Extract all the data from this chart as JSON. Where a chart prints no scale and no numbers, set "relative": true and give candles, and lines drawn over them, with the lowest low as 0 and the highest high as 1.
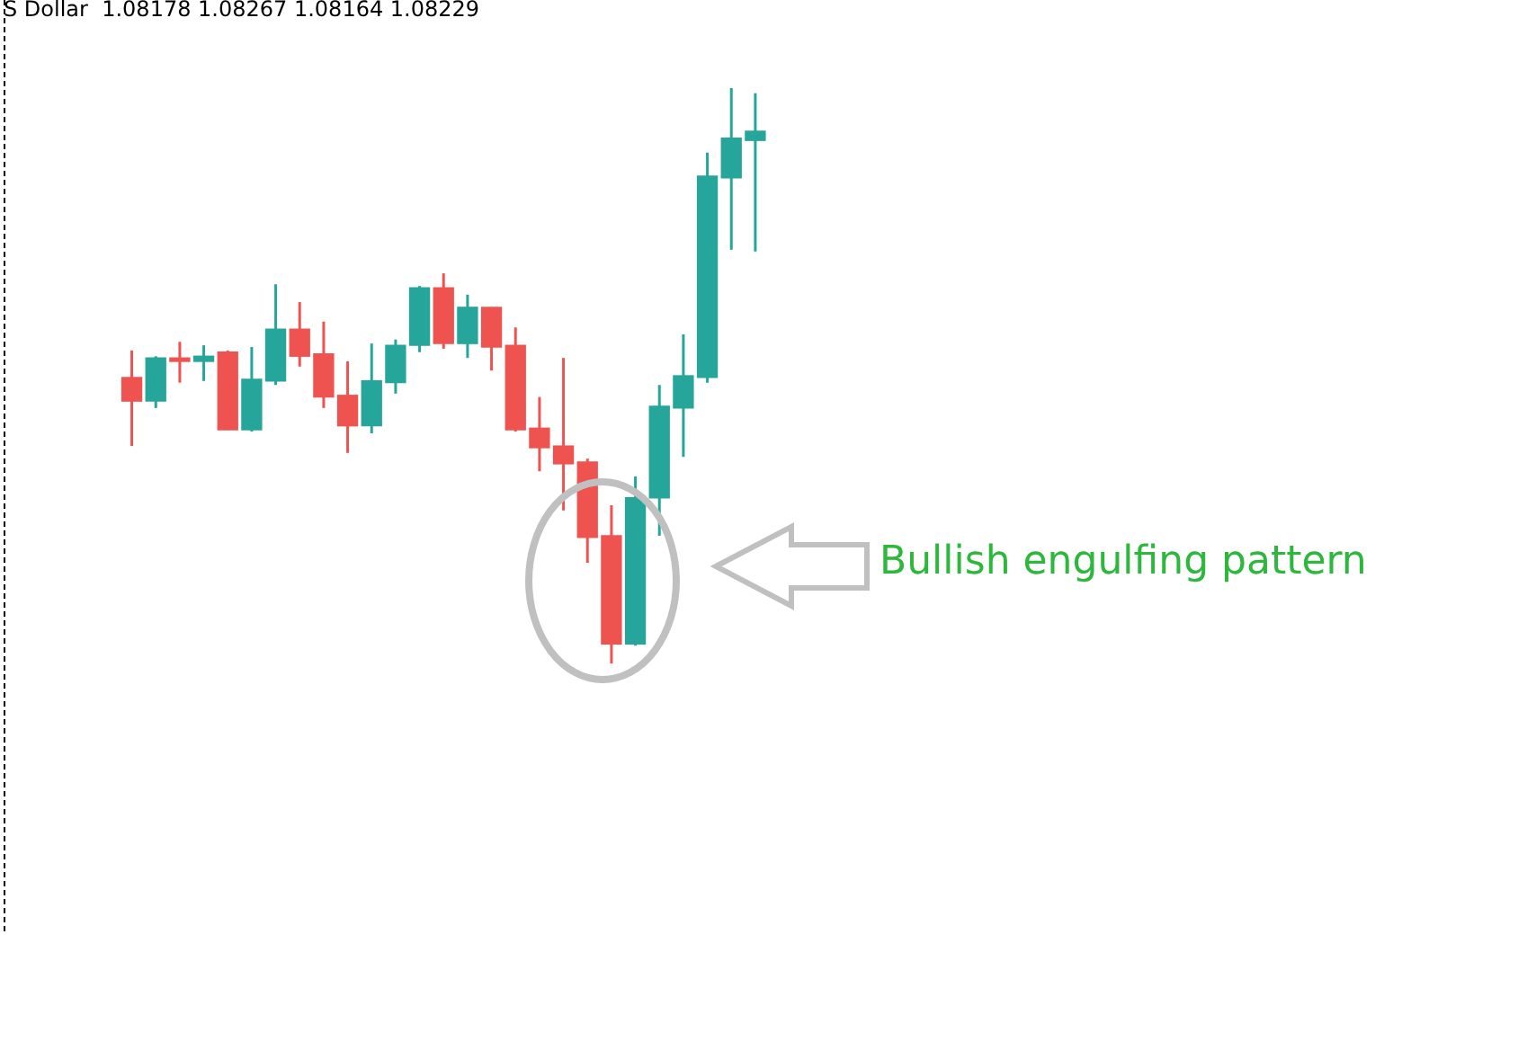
{
  "chart_data": {
    "type": "candlestick",
    "relative": true,
    "categories": [
      null,
      null,
      null,
      null,
      null,
      null,
      null,
      null,
      null,
      null,
      null,
      null,
      null,
      null,
      null,
      null,
      null,
      null,
      null,
      null,
      null,
      null,
      null,
      null,
      null,
      null,
      null
    ],
    "ohlc": [
      [
        0.497,
        0.544,
        0.378,
        0.456
      ],
      [
        0.456,
        0.534,
        0.444,
        0.531
      ],
      [
        0.531,
        0.559,
        0.488,
        0.525
      ],
      [
        0.525,
        0.553,
        0.491,
        0.534
      ],
      [
        0.541,
        0.544,
        0.406,
        0.406
      ],
      [
        0.406,
        0.55,
        0.403,
        0.494
      ],
      [
        0.491,
        0.659,
        0.484,
        0.581
      ],
      [
        0.581,
        0.628,
        0.516,
        0.534
      ],
      [
        0.538,
        0.594,
        0.444,
        0.463
      ],
      [
        0.466,
        0.525,
        0.366,
        0.413
      ],
      [
        0.413,
        0.556,
        0.4,
        0.491
      ],
      [
        0.488,
        0.563,
        0.469,
        0.553
      ],
      [
        0.553,
        0.656,
        0.541,
        0.653
      ],
      [
        0.653,
        0.678,
        0.547,
        0.556
      ],
      [
        0.556,
        0.641,
        0.531,
        0.619
      ],
      [
        0.619,
        0.619,
        0.509,
        0.55
      ],
      [
        0.553,
        0.584,
        0.403,
        0.406
      ],
      [
        0.409,
        0.463,
        0.334,
        0.375
      ],
      [
        0.378,
        0.531,
        0.266,
        0.347
      ],
      [
        0.35,
        0.356,
        0.175,
        0.219
      ],
      [
        0.222,
        0.275,
        0,
        0.034
      ],
      [
        0.034,
        0.325,
        0.031,
        0.288
      ],
      [
        0.288,
        0.484,
        0.222,
        0.447
      ],
      [
        0.444,
        0.572,
        0.359,
        0.5
      ],
      [
        0.497,
        0.888,
        0.488,
        0.847
      ],
      [
        0.844,
        1,
        0.719,
        0.913
      ],
      [
        0.909,
        0.991,
        0.716,
        0.925
      ]
    ],
    "colors": [
      "#ef5350",
      "#26a69a",
      "#ef5350",
      "#26a69a",
      "#ef5350",
      "#26a69a",
      "#26a69a",
      "#ef5350",
      "#ef5350",
      "#ef5350",
      "#26a69a",
      "#26a69a",
      "#26a69a",
      "#ef5350",
      "#26a69a",
      "#ef5350",
      "#ef5350",
      "#ef5350",
      "#ef5350",
      "#ef5350",
      "#ef5350",
      "#26a69a",
      "#26a69a",
      "#26a69a",
      "#26a69a",
      "#26a69a",
      "#26a69a"
    ],
    "annotations": [
      "S Dollar  1.08178 1.08267 1.08164 1.08229",
      "Bullish engulfing pattern"
    ]
  }
}
